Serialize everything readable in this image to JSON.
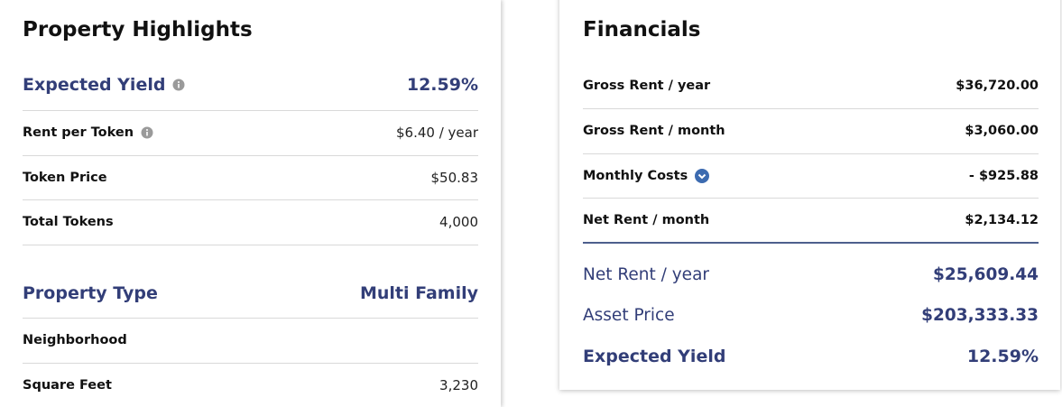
{
  "property_highlights": {
    "title": "Property Highlights",
    "rows": [
      {
        "label": "Expected Yield",
        "value": "12.59%"
      },
      {
        "label": "Rent per Token",
        "value": "$6.40 / year"
      },
      {
        "label": "Token Price",
        "value": "$50.83"
      },
      {
        "label": "Total Tokens",
        "value": "4,000"
      },
      {
        "label": "Property Type",
        "value": "Multi Family"
      },
      {
        "label": "Neighborhood"
      },
      {
        "label": "Square Feet",
        "value": "3,230"
      }
    ]
  },
  "financials": {
    "title": "Financials",
    "rows": [
      {
        "label": "Gross Rent / year",
        "value": "$36,720.00"
      },
      {
        "label": "Gross Rent / month",
        "value": "$3,060.00"
      },
      {
        "label": "Monthly Costs",
        "value": "- $925.88"
      },
      {
        "label": "Net Rent / month",
        "value": "$2,134.12"
      },
      {
        "label": "Net Rent / year",
        "value": "$25,609.44"
      },
      {
        "label": "Asset Price",
        "value": "$203,333.33"
      },
      {
        "label": "Expected Yield",
        "value": "12.59%"
      }
    ]
  }
}
